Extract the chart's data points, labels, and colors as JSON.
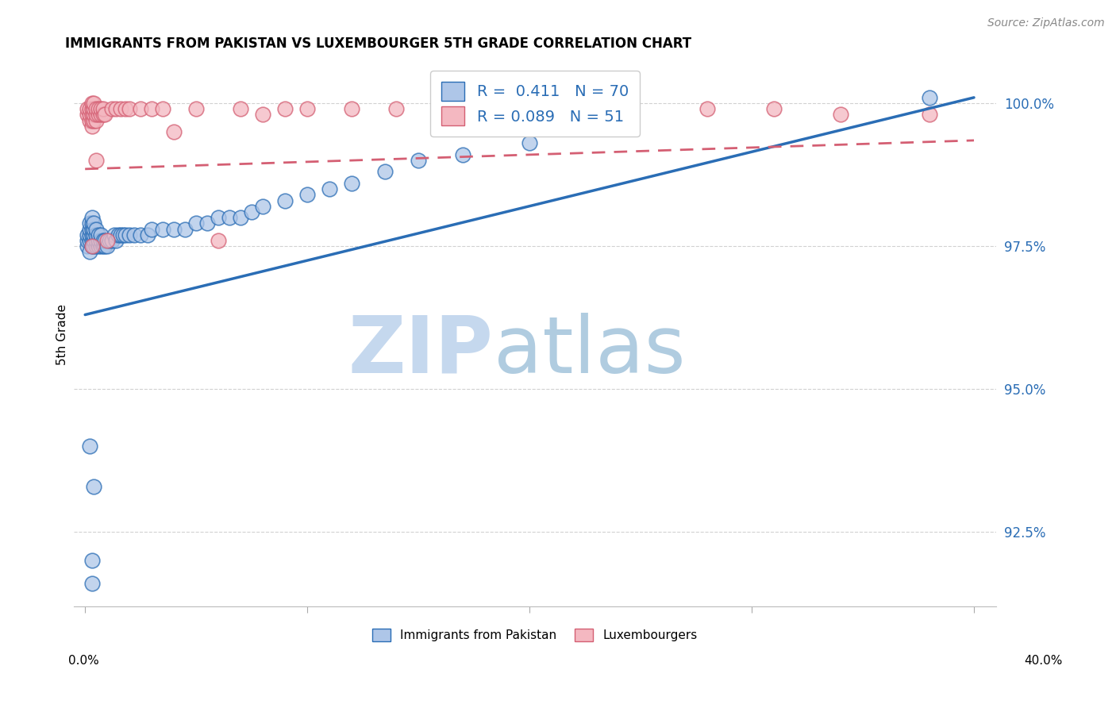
{
  "title": "IMMIGRANTS FROM PAKISTAN VS LUXEMBOURGER 5TH GRADE CORRELATION CHART",
  "source": "Source: ZipAtlas.com",
  "ylabel": "5th Grade",
  "yaxis_labels": [
    "100.0%",
    "97.5%",
    "95.0%",
    "92.5%"
  ],
  "yaxis_values": [
    1.0,
    0.975,
    0.95,
    0.925
  ],
  "legend_blue_r": "0.411",
  "legend_blue_n": "70",
  "legend_pink_r": "0.089",
  "legend_pink_n": "51",
  "blue_color": "#aec6e8",
  "pink_color": "#f4b8c1",
  "trend_blue_color": "#2a6db5",
  "trend_pink_color": "#d45f73",
  "blue_trend_x": [
    0.0,
    0.4
  ],
  "blue_trend_y": [
    0.963,
    1.001
  ],
  "pink_trend_x": [
    0.0,
    0.4
  ],
  "pink_trend_y": [
    0.9885,
    0.9935
  ],
  "xlim": [
    -0.005,
    0.41
  ],
  "ylim": [
    0.912,
    1.007
  ],
  "blue_points_x": [
    0.001,
    0.001,
    0.001,
    0.002,
    0.002,
    0.002,
    0.002,
    0.002,
    0.003,
    0.003,
    0.003,
    0.003,
    0.003,
    0.003,
    0.004,
    0.004,
    0.004,
    0.004,
    0.004,
    0.005,
    0.005,
    0.005,
    0.005,
    0.006,
    0.006,
    0.006,
    0.007,
    0.007,
    0.007,
    0.008,
    0.008,
    0.009,
    0.009,
    0.01,
    0.011,
    0.012,
    0.013,
    0.014,
    0.015,
    0.016,
    0.017,
    0.018,
    0.02,
    0.022,
    0.025,
    0.028,
    0.03,
    0.035,
    0.04,
    0.045,
    0.05,
    0.055,
    0.06,
    0.065,
    0.07,
    0.075,
    0.08,
    0.09,
    0.1,
    0.11,
    0.12,
    0.135,
    0.15,
    0.17,
    0.2,
    0.003,
    0.003,
    0.004,
    0.38,
    0.002
  ],
  "blue_points_y": [
    0.975,
    0.976,
    0.977,
    0.974,
    0.976,
    0.977,
    0.978,
    0.979,
    0.975,
    0.976,
    0.977,
    0.978,
    0.979,
    0.98,
    0.975,
    0.976,
    0.977,
    0.978,
    0.979,
    0.975,
    0.976,
    0.977,
    0.978,
    0.975,
    0.976,
    0.977,
    0.975,
    0.976,
    0.977,
    0.975,
    0.976,
    0.975,
    0.976,
    0.975,
    0.976,
    0.976,
    0.977,
    0.976,
    0.977,
    0.977,
    0.977,
    0.977,
    0.977,
    0.977,
    0.977,
    0.977,
    0.978,
    0.978,
    0.978,
    0.978,
    0.979,
    0.979,
    0.98,
    0.98,
    0.98,
    0.981,
    0.982,
    0.983,
    0.984,
    0.985,
    0.986,
    0.988,
    0.99,
    0.991,
    0.993,
    0.92,
    0.916,
    0.933,
    1.001,
    0.94
  ],
  "pink_points_x": [
    0.001,
    0.001,
    0.002,
    0.002,
    0.002,
    0.003,
    0.003,
    0.003,
    0.003,
    0.003,
    0.004,
    0.004,
    0.004,
    0.004,
    0.005,
    0.005,
    0.005,
    0.006,
    0.006,
    0.007,
    0.007,
    0.008,
    0.008,
    0.009,
    0.01,
    0.012,
    0.014,
    0.016,
    0.018,
    0.02,
    0.025,
    0.03,
    0.035,
    0.04,
    0.05,
    0.06,
    0.07,
    0.08,
    0.09,
    0.1,
    0.12,
    0.14,
    0.16,
    0.2,
    0.24,
    0.28,
    0.31,
    0.34,
    0.38,
    0.005,
    0.003
  ],
  "pink_points_y": [
    0.998,
    0.999,
    0.997,
    0.998,
    0.999,
    0.996,
    0.997,
    0.998,
    0.999,
    1.0,
    0.997,
    0.998,
    0.999,
    1.0,
    0.997,
    0.998,
    0.999,
    0.998,
    0.999,
    0.998,
    0.999,
    0.998,
    0.999,
    0.998,
    0.976,
    0.999,
    0.999,
    0.999,
    0.999,
    0.999,
    0.999,
    0.999,
    0.999,
    0.995,
    0.999,
    0.976,
    0.999,
    0.998,
    0.999,
    0.999,
    0.999,
    0.999,
    0.999,
    0.999,
    0.999,
    0.999,
    0.999,
    0.998,
    0.998,
    0.99,
    0.975
  ]
}
